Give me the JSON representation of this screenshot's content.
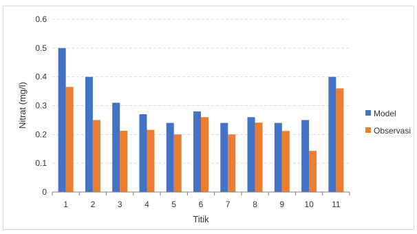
{
  "chart_data": {
    "type": "bar",
    "title": "",
    "xlabel": "Titik",
    "ylabel": "Nitrat (mg/l)",
    "categories": [
      "1",
      "2",
      "3",
      "4",
      "5",
      "6",
      "7",
      "8",
      "9",
      "10",
      "11"
    ],
    "series": [
      {
        "name": "Model",
        "color": "#4472C4",
        "values": [
          0.5,
          0.4,
          0.31,
          0.27,
          0.24,
          0.28,
          0.24,
          0.26,
          0.24,
          0.25,
          0.4
        ]
      },
      {
        "name": "Observasi",
        "color": "#ED7D31",
        "values": [
          0.365,
          0.25,
          0.213,
          0.216,
          0.2,
          0.26,
          0.2,
          0.241,
          0.212,
          0.143,
          0.36
        ]
      }
    ],
    "ylim": [
      0,
      0.6
    ],
    "yticks": [
      "0",
      "0.1",
      "0.2",
      "0.3",
      "0.4",
      "0.5",
      "0.6"
    ],
    "grid": true,
    "legend_position": "right"
  }
}
